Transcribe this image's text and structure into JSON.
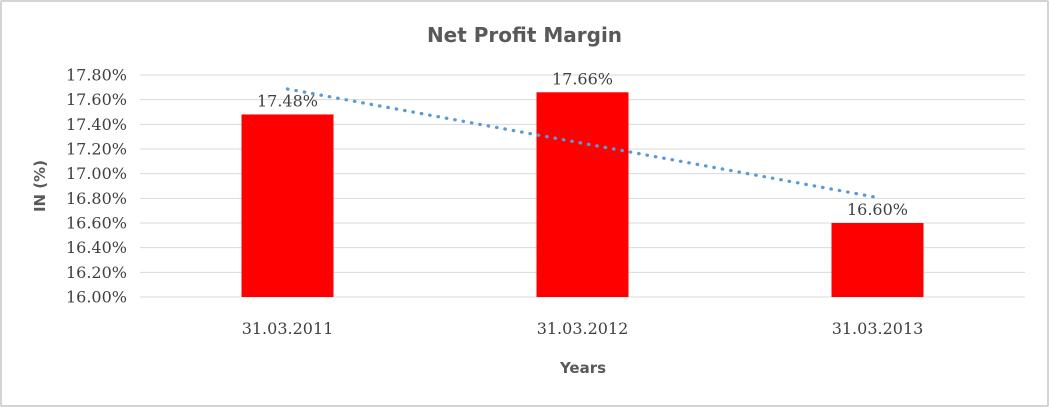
{
  "window": {
    "background": "#ffffff",
    "border_color": "#d4d4d4"
  },
  "chart_data": {
    "type": "bar",
    "title": "Net Profit Margin",
    "xlabel": "Years",
    "ylabel": "IN (%)",
    "categories": [
      "31.03.2011",
      "31.03.2012",
      "31.03.2013"
    ],
    "values": [
      17.48,
      17.66,
      16.6
    ],
    "data_labels": [
      "17.48%",
      "17.66%",
      "16.60%"
    ],
    "yticks": [
      "17.80%",
      "17.60%",
      "17.40%",
      "17.20%",
      "17.00%",
      "16.80%",
      "16.60%",
      "16.40%",
      "16.20%",
      "16.00%"
    ],
    "ylim": [
      16.0,
      17.8
    ],
    "grid": true,
    "legend": false,
    "gridline_color": "#d9d9d9",
    "bar_color": "#FF0000",
    "label_color": "#404040",
    "title_color": "#595959",
    "trendline": {
      "present": true,
      "type": "linear",
      "style": "dotted",
      "color": "#5B9BD5"
    }
  }
}
